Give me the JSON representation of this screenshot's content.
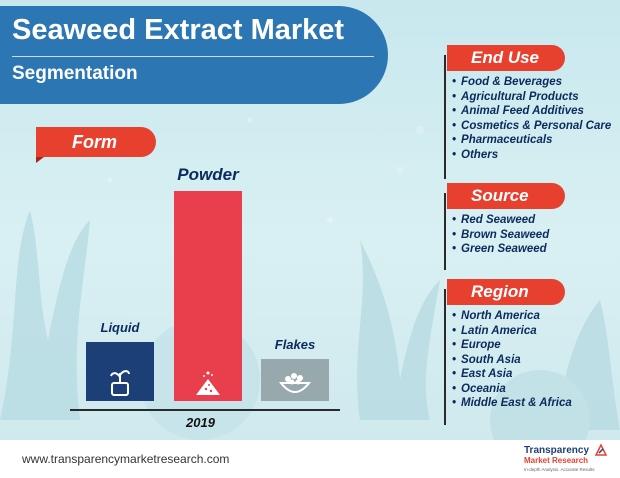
{
  "header": {
    "title": "Seaweed Extract Market",
    "subtitle": "Segmentation"
  },
  "chart_data": {
    "type": "bar",
    "title": "Form",
    "x_label": "2019",
    "categories": [
      "Liquid",
      "Powder",
      "Flakes"
    ],
    "values": [
      28,
      100,
      20
    ],
    "value_note_unit": "relative bar height, % of tallest bar (no axis printed)",
    "colors": [
      "#1d3f78",
      "#e93f4d",
      "#97a9ad"
    ],
    "icons": [
      "plant-bottle-icon",
      "powder-pile-icon",
      "flakes-bowl-icon"
    ]
  },
  "panels": [
    {
      "title": "End Use",
      "items": [
        "Food & Beverages",
        "Agricultural Products",
        "Animal Feed Additives",
        "Cosmetics & Personal Care",
        "Pharmaceuticals",
        "Others"
      ]
    },
    {
      "title": "Source",
      "items": [
        "Red Seaweed",
        "Brown Seaweed",
        "Green Seaweed"
      ]
    },
    {
      "title": "Region",
      "items": [
        "North America",
        "Latin America",
        "Europe",
        "South Asia",
        "East Asia",
        "Oceania",
        "Middle East & Africa"
      ]
    }
  ],
  "footer": {
    "url": "www.transparencymarketresearch.com",
    "brand_name": "Transparency",
    "brand_name2": "Market Research",
    "brand_tagline": "In-depth Analysis. Accurate Results"
  },
  "colors": {
    "title_bg": "#2b76b3",
    "accent": "#e8402f",
    "text_dark": "#0b2b5c"
  }
}
